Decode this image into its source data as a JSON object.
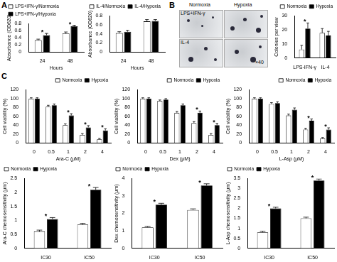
{
  "panel_labels": [
    "A",
    "B",
    "C"
  ],
  "image_panel": {
    "columns": [
      "Normoxia",
      "Hypoxia"
    ],
    "rows": [
      "LPS+IFN-γ",
      "IL-4"
    ],
    "magnification": "×40"
  },
  "chart_data": [
    {
      "type": "bar",
      "x_label": "Hours",
      "y_label": "Absorbance (OD620)",
      "categories": [
        "24",
        "48"
      ],
      "series": [
        {
          "name": "LPS+IFN-γ/Normoxia",
          "color": "#ffffff",
          "values": [
            0.33,
            0.52
          ],
          "errors": [
            0.03,
            0.04
          ]
        },
        {
          "name": "LPS+IFN-γ/Hypoxia",
          "color": "#000000",
          "values": [
            0.47,
            0.72
          ],
          "errors": [
            0.05,
            0.03
          ]
        }
      ],
      "ylim": [
        0,
        0.8
      ],
      "yticks": [
        0,
        0.2,
        0.4,
        0.6,
        0.8
      ],
      "grid": false,
      "legend": "top-left",
      "annotations": [
        {
          "text": "*",
          "category": "24"
        },
        {
          "text": "*",
          "category": "48"
        }
      ]
    },
    {
      "type": "bar",
      "x_label": "Hours",
      "y_label": "Absorbance (OD620)",
      "categories": [
        "24",
        "48"
      ],
      "series": [
        {
          "name": "IL-4/Normoxia",
          "color": "#ffffff",
          "values": [
            0.42,
            0.68
          ],
          "errors": [
            0.03,
            0.04
          ]
        },
        {
          "name": "IL-4/Hypoxia",
          "color": "#000000",
          "values": [
            0.45,
            0.69
          ],
          "errors": [
            0.03,
            0.03
          ]
        }
      ],
      "ylim": [
        0,
        0.8
      ],
      "yticks": [
        0,
        0.2,
        0.4,
        0.6,
        0.8
      ],
      "grid": false,
      "legend": "top-left",
      "annotations": []
    },
    {
      "type": "bar",
      "y_label": "Colonies per view",
      "categories": [
        "LPS-IFN-γ",
        "IL-4"
      ],
      "series": [
        {
          "name": "Normoxia",
          "color": "#ffffff",
          "values": [
            6,
            18
          ],
          "errors": [
            3,
            3
          ]
        },
        {
          "name": "Hypoxia",
          "color": "#000000",
          "values": [
            21,
            16
          ],
          "errors": [
            4,
            3
          ]
        }
      ],
      "ylim": [
        0,
        30
      ],
      "yticks": [
        0,
        10,
        20,
        30
      ],
      "grid": false,
      "legend": "top-right",
      "annotations": [
        {
          "text": "*",
          "category": "LPS-IFN-γ"
        }
      ]
    },
    {
      "type": "bar",
      "x_label": "Ara-C (μM)",
      "y_label": "Cell viability (%)",
      "categories": [
        "0",
        "0.5",
        "1",
        "2",
        "4"
      ],
      "series": [
        {
          "name": "Normoxia",
          "color": "#ffffff",
          "values": [
            100,
            82,
            40,
            18,
            8
          ],
          "errors": [
            2,
            3,
            3,
            3,
            2
          ]
        },
        {
          "name": "Hypoxia",
          "color": "#000000",
          "values": [
            100,
            85,
            62,
            35,
            28
          ],
          "errors": [
            2,
            3,
            4,
            4,
            4
          ]
        }
      ],
      "ylim": [
        0,
        120
      ],
      "yticks": [
        0,
        20,
        40,
        60,
        80,
        100,
        120
      ],
      "grid": false,
      "legend": "top-right",
      "annotations": [
        {
          "text": "*",
          "category": "1"
        },
        {
          "text": "*",
          "category": "2"
        },
        {
          "text": "*",
          "category": "4"
        }
      ]
    },
    {
      "type": "bar",
      "x_label": "Dex (μM)",
      "y_label": "Cell viability (%)",
      "categories": [
        "0",
        "0.5",
        "1",
        "2",
        "4"
      ],
      "series": [
        {
          "name": "Normoxia",
          "color": "#ffffff",
          "values": [
            100,
            95,
            68,
            45,
            18
          ],
          "errors": [
            2,
            2,
            3,
            3,
            3
          ]
        },
        {
          "name": "Hypoxia",
          "color": "#000000",
          "values": [
            100,
            98,
            85,
            68,
            40
          ],
          "errors": [
            2,
            2,
            3,
            4,
            4
          ]
        }
      ],
      "ylim": [
        0,
        120
      ],
      "yticks": [
        0,
        20,
        40,
        60,
        80,
        100,
        120
      ],
      "grid": false,
      "legend": "top-right",
      "annotations": [
        {
          "text": "*",
          "category": "2"
        },
        {
          "text": "*",
          "category": "4"
        }
      ]
    },
    {
      "type": "bar",
      "x_label": "L-Asp (μM)",
      "y_label": "Cell viability (%)",
      "categories": [
        "0",
        "0.5",
        "1",
        "2",
        "4"
      ],
      "series": [
        {
          "name": "Normoxia",
          "color": "#ffffff",
          "values": [
            100,
            88,
            62,
            30,
            10
          ],
          "errors": [
            2,
            3,
            3,
            3,
            2
          ]
        },
        {
          "name": "Hypoxia",
          "color": "#000000",
          "values": [
            100,
            90,
            75,
            50,
            30
          ],
          "errors": [
            2,
            3,
            4,
            4,
            4
          ]
        }
      ],
      "ylim": [
        0,
        120
      ],
      "yticks": [
        0,
        20,
        40,
        60,
        80,
        100,
        120
      ],
      "grid": false,
      "legend": "top-right",
      "annotations": [
        {
          "text": "*",
          "category": "2"
        },
        {
          "text": "*",
          "category": "4"
        }
      ]
    },
    {
      "type": "bar",
      "y_label": "Ara-C chemosensitivity (μm)",
      "categories": [
        "IC30",
        "IC50"
      ],
      "series": [
        {
          "name": "Normoxia",
          "color": "#ffffff",
          "values": [
            0.6,
            0.85
          ],
          "errors": [
            0.05,
            0.04
          ]
        },
        {
          "name": "Hypoxia",
          "color": "#000000",
          "values": [
            1.05,
            2.1
          ],
          "errors": [
            0.05,
            0.08
          ]
        }
      ],
      "ylim": [
        0,
        2.5
      ],
      "yticks": [
        0,
        0.5,
        1,
        1.5,
        2,
        2.5
      ],
      "grid": false,
      "legend": "top-left",
      "annotations": [
        {
          "text": "*",
          "category": "IC30"
        },
        {
          "text": "*",
          "category": "IC50"
        }
      ]
    },
    {
      "type": "bar",
      "y_label": "Dex chemosensitivity (μm)",
      "categories": [
        "IC30",
        "IC50"
      ],
      "series": [
        {
          "name": "Normoxia",
          "color": "#ffffff",
          "values": [
            1.2,
            2.2
          ],
          "errors": [
            0.05,
            0.06
          ]
        },
        {
          "name": "Hypoxia",
          "color": "#000000",
          "values": [
            2.5,
            3.6
          ],
          "errors": [
            0.08,
            0.1
          ]
        }
      ],
      "ylim": [
        0,
        4
      ],
      "yticks": [
        0,
        1,
        2,
        3,
        4
      ],
      "grid": false,
      "legend": "top-left",
      "annotations": [
        {
          "text": "*",
          "category": "IC30"
        },
        {
          "text": "*",
          "category": "IC50"
        }
      ]
    },
    {
      "type": "bar",
      "y_label": "L-Asp chemosensitivity (μm)",
      "categories": [
        "IC30",
        "IC50"
      ],
      "series": [
        {
          "name": "Normoxia",
          "color": "#ffffff",
          "values": [
            0.8,
            1.5
          ],
          "errors": [
            0.05,
            0.06
          ]
        },
        {
          "name": "Hypoxia",
          "color": "#000000",
          "values": [
            2.0,
            3.4
          ],
          "errors": [
            0.06,
            0.08
          ]
        }
      ],
      "ylim": [
        0,
        3.5
      ],
      "yticks": [
        0,
        0.5,
        1,
        1.5,
        2,
        2.5,
        3,
        3.5
      ],
      "grid": false,
      "legend": "top-left",
      "annotations": [
        {
          "text": "*",
          "category": "IC30"
        },
        {
          "text": "*",
          "category": "IC50"
        }
      ]
    }
  ]
}
